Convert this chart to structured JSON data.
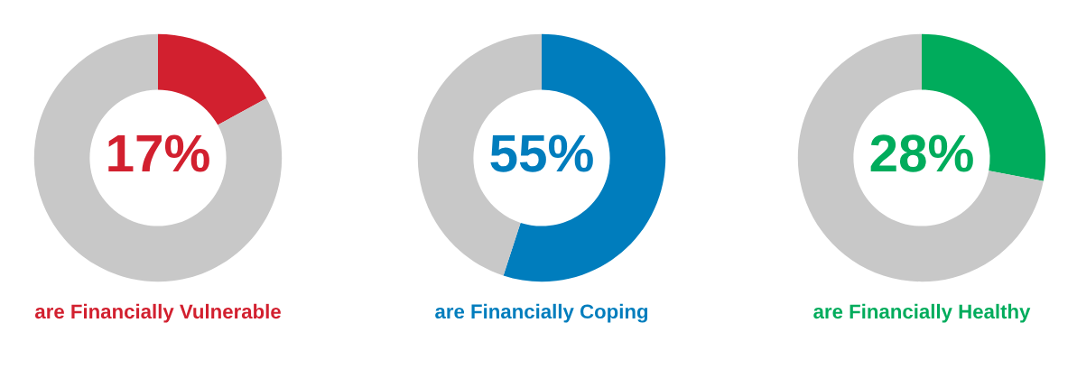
{
  "chart_data": [
    {
      "type": "donut",
      "title": "are Financially Vulnerable",
      "categories": [
        null,
        null
      ],
      "values": [
        17,
        83
      ],
      "colors": [
        "#d2202f",
        "#c8c8c8"
      ],
      "value_labels": [
        "17%",
        null
      ]
    },
    {
      "type": "donut",
      "title": "are Financially Coping",
      "categories": [
        null,
        null
      ],
      "values": [
        55,
        45
      ],
      "colors": [
        "#007dbd",
        "#c8c8c8"
      ],
      "value_labels": [
        "55%",
        null
      ]
    },
    {
      "type": "donut",
      "title": "are Financially Healthy",
      "categories": [
        null,
        null
      ],
      "values": [
        28,
        72
      ],
      "colors": [
        "#00ac5c",
        "#c8c8c8"
      ],
      "value_labels": [
        "28%",
        null
      ]
    }
  ]
}
